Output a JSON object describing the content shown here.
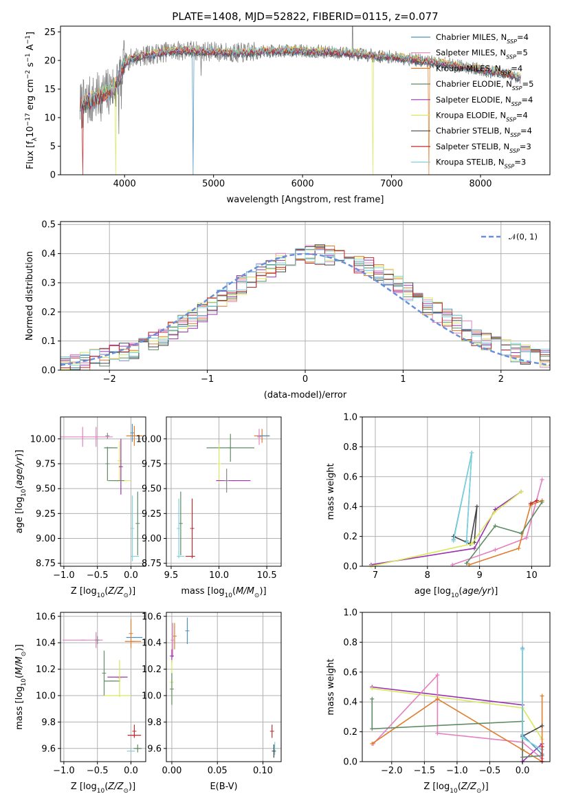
{
  "figure_title": "PLATE=1408, MJD=52822, FIBERID=0115, z=0.077",
  "chart_data": [
    {
      "id": "spectrum",
      "type": "line",
      "xlabel": "wavelength [Angstrom, rest frame]",
      "ylabel": "Flux [f",
      "ylabel_parts": [
        "Flux [f",
        "λ",
        "10",
        "−17",
        " erg cm",
        "−2",
        " s",
        "−1",
        " A",
        "−1",
        "]"
      ],
      "xlim": [
        3280,
        8780
      ],
      "ylim": [
        0,
        26
      ],
      "xticks": [
        4000,
        5000,
        6000,
        7000,
        8000
      ],
      "yticks": [
        0,
        5,
        10,
        15,
        20,
        25
      ],
      "grid": false,
      "legend_position": "top-right",
      "continuum": {
        "x": [
          3500,
          3600,
          3700,
          3800,
          3900,
          4000,
          4100,
          4300,
          4500,
          4700,
          5000,
          5300,
          5600,
          5900,
          6200,
          6500,
          6800,
          7100,
          7400,
          7700,
          8000,
          8300,
          8450
        ],
        "y": [
          12.0,
          12.8,
          13.5,
          14.3,
          15.5,
          19.5,
          20.6,
          21.0,
          21.6,
          21.8,
          21.5,
          21.3,
          21.6,
          21.7,
          21.5,
          21.3,
          20.8,
          20.5,
          19.8,
          19.2,
          18.4,
          17.6,
          17.0
        ]
      },
      "series": [
        {
          "name": "Chabrier MILES",
          "nssp": "4",
          "color": "#4a8fc0",
          "lw": 1.0
        },
        {
          "name": "Salpeter MILES",
          "nssp": "5",
          "color": "#e47fc0",
          "lw": 1.0
        },
        {
          "name": "Kroupa MILES",
          "nssp": "4",
          "color": "#e07c2a",
          "lw": 1.0
        },
        {
          "name": "Chabrier ELODIE",
          "nssp": "5",
          "color": "#5e8b64",
          "lw": 1.0
        },
        {
          "name": "Salpeter ELODIE",
          "nssp": "4",
          "color": "#9a30b0",
          "lw": 1.0
        },
        {
          "name": "Kroupa ELODIE",
          "nssp": "4",
          "color": "#d8e85a",
          "lw": 1.0
        },
        {
          "name": "Chabrier STELIB",
          "nssp": "4",
          "color": "#444444",
          "lw": 1.0
        },
        {
          "name": "Salpeter STELIB",
          "nssp": "3",
          "color": "#c0282a",
          "lw": 1.0
        },
        {
          "name": "Kroupa STELIB",
          "nssp": "3",
          "color": "#7dd3dd",
          "lw": 1.0
        }
      ],
      "data_color": "#808080",
      "dips": [
        {
          "x": 3530,
          "color": "#c0282a"
        },
        {
          "x": 3900,
          "color": "#d8e85a"
        },
        {
          "x": 4770,
          "color": "#4a8fc0"
        },
        {
          "x": 6790,
          "color": "#d8e85a"
        },
        {
          "x": 7420,
          "color": "#e07c2a"
        }
      ]
    },
    {
      "id": "residuals",
      "type": "step",
      "xlabel": "(data-model)/error",
      "ylabel": "Normed distribution",
      "xlim": [
        -2.5,
        2.5
      ],
      "ylim": [
        0,
        0.51
      ],
      "xticks": [
        -2,
        -1,
        0,
        1,
        2
      ],
      "xticklabels": [
        "−2",
        "−1",
        "0",
        "1",
        "2"
      ],
      "yticks": [
        0.0,
        0.1,
        0.2,
        0.3,
        0.4,
        0.5
      ],
      "yticklabels": [
        "0.0",
        "0.1",
        "0.2",
        "0.3",
        "0.4",
        "0.5"
      ],
      "grid": true,
      "legend_position": "top-right",
      "legend_label": "𝒩(0, 1)",
      "gaussian": {
        "mean": 0,
        "sigma": 1,
        "color": "#6a8fd8",
        "dash": "7,4"
      },
      "bin_width": 0.1,
      "hist_colors": [
        "#4a8fc0",
        "#e47fc0",
        "#e07c2a",
        "#5e8b64",
        "#9a30b0",
        "#d8e85a",
        "#444444",
        "#c0282a",
        "#7dd3dd"
      ]
    },
    {
      "id": "age_vs_Z",
      "type": "errorbar",
      "xlabel": "Z [log",
      "xlabel_parts": [
        "Z [log",
        "10",
        "(",
        "Z/Z",
        "⊙",
        ")]"
      ],
      "ylabel_parts": [
        "age  [log",
        "10",
        "(",
        "age/yr",
        ")]"
      ],
      "xlim": [
        -1.05,
        0.22
      ],
      "ylim": [
        8.72,
        10.22
      ],
      "xticks": [
        -1.0,
        -0.5,
        0.0
      ],
      "xticklabels": [
        "−1.0",
        "−0.5",
        "0.0"
      ],
      "yticks": [
        8.75,
        9.0,
        9.25,
        9.5,
        9.75,
        10.0
      ],
      "yticklabels": [
        "8.75",
        "9.00",
        "9.25",
        "9.50",
        "9.75",
        "10.00"
      ],
      "grid": true,
      "points": [
        {
          "x": -0.72,
          "y": 10.02,
          "xerr": 0.45,
          "yerr": 0.1,
          "color": "#e47fc0"
        },
        {
          "x": -0.52,
          "y": 10.02,
          "xerr": 0.0,
          "yerr": 0.1,
          "color": "#e47fc0"
        },
        {
          "x": -0.35,
          "y": 10.03,
          "xerr": 0.0,
          "yerr": 0.03,
          "color": "#888888"
        },
        {
          "x": 0.05,
          "y": 10.03,
          "xerr": 0.12,
          "yerr": 0.1,
          "color": "#e07c2a"
        },
        {
          "x": 0.02,
          "y": 10.06,
          "xerr": 0.0,
          "yerr": 0.09,
          "color": "#4a8fc0"
        },
        {
          "x": -0.3,
          "y": 9.91,
          "xerr": 0.1,
          "yerr": 0.0,
          "color": "#5e8b64"
        },
        {
          "x": -0.17,
          "y": 9.78,
          "xerr": 0.0,
          "yerr": 0.2,
          "color": "#d8e85a"
        },
        {
          "x": -0.15,
          "y": 9.72,
          "xerr": 0.0,
          "yerr": 0.28,
          "color": "#9a30b0"
        },
        {
          "x": -0.18,
          "y": 9.58,
          "xerr": 0.18,
          "yerr": 0.0,
          "color": "#d8e85a"
        },
        {
          "x": -0.22,
          "y": 9.58,
          "xerr": 0.12,
          "yerr": 0.0,
          "color": "#5e8b64"
        },
        {
          "x": -0.35,
          "y": 9.75,
          "xerr": 0.0,
          "yerr": 0.17,
          "color": "#5e8b64"
        },
        {
          "x": 0.02,
          "y": 9.1,
          "xerr": 0.0,
          "yerr": 0.33,
          "color": "#7dd3dd"
        },
        {
          "x": 0.1,
          "y": 9.15,
          "xerr": 0.0,
          "yerr": 0.32,
          "color": "#5e8b64"
        },
        {
          "x": 0.06,
          "y": 8.82,
          "xerr": 0.06,
          "yerr": 0.0,
          "color": "#7dd3dd"
        }
      ]
    },
    {
      "id": "age_vs_mass",
      "type": "errorbar",
      "xlabel_parts": [
        "mass [log",
        "10",
        "(",
        "M/M",
        "⊙",
        ")]"
      ],
      "xlim": [
        9.45,
        10.65
      ],
      "ylim": [
        8.72,
        10.22
      ],
      "xticks": [
        9.5,
        10.0,
        10.5
      ],
      "xticklabels": [
        "9.5",
        "10.0",
        "10.5"
      ],
      "yticks": [
        8.75,
        9.0,
        9.25,
        9.5,
        9.75,
        10.0
      ],
      "yticklabels": [
        "8.75",
        "9.00",
        "9.25",
        "9.50",
        "9.75",
        "10.00"
      ],
      "grid": true,
      "points": [
        {
          "x": 10.45,
          "y": 10.03,
          "xerr": 0.08,
          "yerr": 0.07,
          "color": "#e07c2a"
        },
        {
          "x": 10.47,
          "y": 10.03,
          "xerr": 0.06,
          "yerr": 0.0,
          "color": "#4a8fc0"
        },
        {
          "x": 10.42,
          "y": 10.02,
          "xerr": 0.0,
          "yerr": 0.08,
          "color": "#e47fc0"
        },
        {
          "x": 10.12,
          "y": 9.91,
          "xerr": 0.25,
          "yerr": 0.14,
          "color": "#5e8b64"
        },
        {
          "x": 10.0,
          "y": 9.75,
          "xerr": 0.0,
          "yerr": 0.2,
          "color": "#d8e85a"
        },
        {
          "x": 10.15,
          "y": 9.58,
          "xerr": 0.18,
          "yerr": 0.0,
          "color": "#9a30b0"
        },
        {
          "x": 10.08,
          "y": 9.58,
          "xerr": 0.0,
          "yerr": 0.12,
          "color": "#888888"
        },
        {
          "x": 9.6,
          "y": 9.15,
          "xerr": 0.0,
          "yerr": 0.32,
          "color": "#5e8b64"
        },
        {
          "x": 9.58,
          "y": 9.1,
          "xerr": 0.0,
          "yerr": 0.3,
          "color": "#7dd3dd"
        },
        {
          "x": 9.72,
          "y": 9.1,
          "xerr": 0.0,
          "yerr": 0.3,
          "color": "#c0282a"
        },
        {
          "x": 9.7,
          "y": 8.82,
          "xerr": 0.05,
          "yerr": 0.0,
          "color": "#c0282a"
        },
        {
          "x": 9.6,
          "y": 8.82,
          "xerr": 0.04,
          "yerr": 0.0,
          "color": "#7dd3dd"
        }
      ]
    },
    {
      "id": "massweight_vs_age",
      "type": "line",
      "xlabel_parts": [
        "age  [log",
        "10",
        "(",
        "age/yr",
        ")]"
      ],
      "ylabel": "mass weight",
      "xlim": [
        6.75,
        10.35
      ],
      "ylim": [
        0,
        1
      ],
      "xticks": [
        7,
        8,
        9,
        10
      ],
      "xticklabels": [
        "7",
        "8",
        "9",
        "10"
      ],
      "yticks": [
        0.0,
        0.2,
        0.4,
        0.6,
        0.8,
        1.0
      ],
      "yticklabels": [
        "0.0",
        "0.2",
        "0.4",
        "0.6",
        "0.8",
        "1.0"
      ],
      "grid": true,
      "series": [
        {
          "color": "#e47fc0",
          "x": [
            8.48,
            9.3,
            9.9,
            10.2
          ],
          "y": [
            0.01,
            0.11,
            0.19,
            0.58
          ]
        },
        {
          "color": "#e07c2a",
          "x": [
            8.8,
            9.75,
            9.98,
            10.2
          ],
          "y": [
            0.01,
            0.12,
            0.41,
            0.44
          ]
        },
        {
          "color": "#5e8b64",
          "x": [
            8.75,
            9.3,
            9.8,
            10.2
          ],
          "y": [
            0.02,
            0.27,
            0.22,
            0.43
          ]
        },
        {
          "color": "#444444",
          "x": [
            8.5,
            8.82,
            8.95,
            8.9
          ],
          "y": [
            0.2,
            0.15,
            0.4,
            0.16
          ]
        },
        {
          "color": "#4a8fc0",
          "x": [
            8.5,
            8.85,
            8.75
          ],
          "y": [
            0.18,
            0.76,
            0.17
          ]
        },
        {
          "color": "#7dd3dd",
          "x": [
            8.5,
            8.85,
            8.75
          ],
          "y": [
            0.17,
            0.76,
            0.16
          ]
        },
        {
          "color": "#9a30b0",
          "x": [
            6.92,
            8.9,
            9.3,
            9.8
          ],
          "y": [
            0.01,
            0.12,
            0.38,
            0.5
          ]
        },
        {
          "color": "#d8e85a",
          "x": [
            6.92,
            8.85,
            9.28,
            9.8
          ],
          "y": [
            0.0,
            0.15,
            0.36,
            0.5
          ]
        },
        {
          "color": "#c0282a",
          "x": [
            9.98,
            10.1
          ],
          "y": [
            0.42,
            0.44
          ]
        }
      ]
    },
    {
      "id": "mass_vs_Z",
      "type": "errorbar",
      "xlabel_parts": [
        "Z [log",
        "10",
        "(",
        "Z/Z",
        "⊙",
        ")]"
      ],
      "ylabel_parts": [
        "mass [log",
        "10",
        "(",
        "M/M",
        "⊙",
        ")]"
      ],
      "xlim": [
        -1.05,
        0.22
      ],
      "ylim": [
        9.5,
        10.63
      ],
      "xticks": [
        -1.0,
        -0.5,
        0.0
      ],
      "xticklabels": [
        "−1.0",
        "−0.5",
        "0.0"
      ],
      "yticks": [
        9.6,
        9.8,
        10.0,
        10.2,
        10.4,
        10.6
      ],
      "yticklabels": [
        "9.6",
        "9.8",
        "10.0",
        "10.2",
        "10.4",
        "10.6"
      ],
      "grid": true,
      "points": [
        {
          "x": -0.72,
          "y": 10.42,
          "xerr": 0.3,
          "yerr": 0.0,
          "color": "#e47fc0"
        },
        {
          "x": -0.52,
          "y": 10.42,
          "xerr": 0.0,
          "yerr": 0.06,
          "color": "#e47fc0"
        },
        {
          "x": 0.05,
          "y": 10.44,
          "xerr": 0.12,
          "yerr": 0.0,
          "color": "#4a8fc0"
        },
        {
          "x": 0.03,
          "y": 10.41,
          "xerr": 0.12,
          "yerr": 0.0,
          "color": "#e07c2a"
        },
        {
          "x": 0.0,
          "y": 10.47,
          "xerr": 0.0,
          "yerr": 0.11,
          "color": "#e07c2a"
        },
        {
          "x": -0.2,
          "y": 10.14,
          "xerr": 0.15,
          "yerr": 0.0,
          "color": "#9a30b0"
        },
        {
          "x": -0.28,
          "y": 10.11,
          "xerr": 0.12,
          "yerr": 0.0,
          "color": "#5e8b64"
        },
        {
          "x": -0.4,
          "y": 10.17,
          "xerr": 0.0,
          "yerr": 0.17,
          "color": "#5e8b64"
        },
        {
          "x": -0.17,
          "y": 10.13,
          "xerr": 0.0,
          "yerr": 0.14,
          "color": "#d8e85a"
        },
        {
          "x": -0.2,
          "y": 10.0,
          "xerr": 0.2,
          "yerr": 0.0,
          "color": "#d8e85a"
        },
        {
          "x": -0.5,
          "y": 10.42,
          "xerr": 0.0,
          "yerr": 0.03,
          "color": "#888888"
        },
        {
          "x": 0.05,
          "y": 9.7,
          "xerr": 0.1,
          "yerr": 0.0,
          "color": "#c0282a"
        },
        {
          "x": 0.05,
          "y": 9.73,
          "xerr": 0.0,
          "yerr": 0.05,
          "color": "#c0282a"
        },
        {
          "x": 0.0,
          "y": 9.58,
          "xerr": 0.06,
          "yerr": 0.0,
          "color": "#7dd3dd"
        },
        {
          "x": 0.1,
          "y": 9.6,
          "xerr": 0.06,
          "yerr": 0.03,
          "color": "#5e8b64"
        }
      ]
    },
    {
      "id": "mass_vs_ebv",
      "type": "errorbar",
      "xlabel": "E(B-V)",
      "xlim": [
        -0.006,
        0.12
      ],
      "ylim": [
        9.5,
        10.63
      ],
      "xticks": [
        0.0,
        0.05,
        0.1
      ],
      "xticklabels": [
        "0.00",
        "0.05",
        "0.10"
      ],
      "yticks": [
        9.6,
        9.8,
        10.0,
        10.2,
        10.4,
        10.6
      ],
      "yticklabels": [
        "9.6",
        "9.8",
        "10.0",
        "10.2",
        "10.4",
        "10.6"
      ],
      "grid": true,
      "points": [
        {
          "x": 0.017,
          "y": 10.49,
          "xerr": 0.0,
          "yerr": 0.1,
          "color": "#4a8fc0"
        },
        {
          "x": 0.003,
          "y": 10.45,
          "xerr": 0.0,
          "yerr": 0.1,
          "color": "#e07c2a"
        },
        {
          "x": 0.001,
          "y": 10.42,
          "xerr": 0.0,
          "yerr": 0.13,
          "color": "#e47fc0"
        },
        {
          "x": 0.0,
          "y": 10.3,
          "xerr": 0.0,
          "yerr": 0.05,
          "color": "#9a30b0"
        },
        {
          "x": 0.0,
          "y": 10.1,
          "xerr": 0.0,
          "yerr": 0.17,
          "color": "#d8e85a"
        },
        {
          "x": 0.0,
          "y": 10.05,
          "xerr": 0.0,
          "yerr": 0.12,
          "color": "#5e8b64"
        },
        {
          "x": 0.11,
          "y": 9.73,
          "xerr": 0.0,
          "yerr": 0.05,
          "color": "#c0282a"
        },
        {
          "x": 0.113,
          "y": 9.6,
          "xerr": 0.0,
          "yerr": 0.05,
          "color": "#7dd3dd"
        },
        {
          "x": 0.112,
          "y": 9.58,
          "xerr": 0.0,
          "yerr": 0.05,
          "color": "#444444"
        }
      ]
    },
    {
      "id": "massweight_vs_Z",
      "type": "line",
      "xlabel_parts": [
        "Z [log",
        "10",
        "(",
        "Z/Z",
        "⊙",
        ")]"
      ],
      "ylabel": "mass weight",
      "xlim": [
        -2.45,
        0.42
      ],
      "ylim": [
        0,
        1
      ],
      "xticks": [
        -2.0,
        -1.5,
        -1.0,
        -0.5,
        0.0
      ],
      "xticklabels": [
        "−2.0",
        "−1.5",
        "−1.0",
        "−0.5",
        "0.0"
      ],
      "yticks": [
        0.0,
        0.2,
        0.4,
        0.6,
        0.8,
        1.0
      ],
      "yticklabels": [
        "0.0",
        "0.2",
        "0.4",
        "0.6",
        "0.8",
        "1.0"
      ],
      "grid": true,
      "series": [
        {
          "color": "#9a30b0",
          "x": [
            -2.3,
            0.0,
            0.0,
            0.3
          ],
          "y": [
            0.5,
            0.38,
            0.0,
            0.12
          ]
        },
        {
          "color": "#d8e85a",
          "x": [
            -2.3,
            0.0,
            0.3
          ],
          "y": [
            0.49,
            0.36,
            0.15
          ]
        },
        {
          "color": "#e47fc0",
          "x": [
            -2.28,
            -1.3,
            -1.3,
            0.0,
            0.3
          ],
          "y": [
            0.12,
            0.58,
            0.19,
            0.13,
            0.02
          ]
        },
        {
          "color": "#e07c2a",
          "x": [
            -2.3,
            -1.3,
            0.0,
            0.3,
            0.3
          ],
          "y": [
            0.12,
            0.42,
            0.08,
            0.0,
            0.44
          ]
        },
        {
          "color": "#5e8b64",
          "x": [
            -2.3,
            -2.3,
            0.0,
            0.0,
            0.3
          ],
          "y": [
            0.42,
            0.22,
            0.27,
            0.03,
            0.04
          ]
        },
        {
          "color": "#444444",
          "x": [
            0.0,
            0.3
          ],
          "y": [
            0.17,
            0.24
          ]
        },
        {
          "color": "#4a8fc0",
          "x": [
            0.0,
            0.0,
            0.3
          ],
          "y": [
            0.76,
            0.18,
            0.05
          ]
        },
        {
          "color": "#7dd3dd",
          "x": [
            0.0,
            0.0,
            0.3
          ],
          "y": [
            0.75,
            0.16,
            0.08
          ]
        },
        {
          "color": "#c0282a",
          "x": [
            0.3,
            0.3
          ],
          "y": [
            0.1,
            0.0
          ]
        }
      ]
    }
  ]
}
